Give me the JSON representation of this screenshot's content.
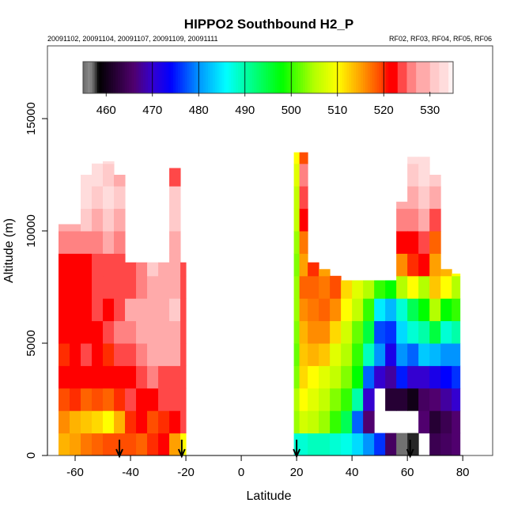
{
  "chart_data": {
    "type": "heatmap",
    "title": "HIPPO2 Southbound H2_P",
    "subtitle_left": "20091102, 20091104, 20091107, 20091109, 20091111",
    "subtitle_right": "RF02, RF03, RF04, RF05, RF06",
    "xlabel": "Latitude",
    "ylabel": "Altitude (m)",
    "xlim": [
      -70,
      90.8
    ],
    "ylim": [
      0,
      18240
    ],
    "x_ticks": [
      -60,
      -40,
      -20,
      0,
      20,
      40,
      60,
      80
    ],
    "x_tick_labels": [
      "-60",
      "-40",
      "-20",
      "0",
      "20",
      "40",
      "60",
      "80"
    ],
    "y_ticks": [
      0,
      5000,
      10000,
      15000
    ],
    "y_tick_labels": [
      "0",
      "5000",
      "10000",
      "15000"
    ],
    "alt_bin_m": 1000,
    "colorbar": {
      "range": [
        455,
        535
      ],
      "ticks": [
        460,
        470,
        480,
        490,
        500,
        510,
        520,
        530
      ],
      "tick_labels": [
        "460",
        "470",
        "480",
        "490",
        "500",
        "510",
        "520",
        "530"
      ],
      "stops": [
        [
          455,
          "#6a6a6a"
        ],
        [
          456.5,
          "#8c8c8c"
        ],
        [
          457.5,
          "#555555"
        ],
        [
          458.4,
          "#000000"
        ],
        [
          466,
          "#50006e"
        ],
        [
          470,
          "#3400d0"
        ],
        [
          474,
          "#0000ff"
        ],
        [
          480,
          "#0094ff"
        ],
        [
          486,
          "#00ffff"
        ],
        [
          490,
          "#00ffa8"
        ],
        [
          498,
          "#00ff00"
        ],
        [
          505,
          "#b4ff00"
        ],
        [
          510,
          "#ffff00"
        ],
        [
          515,
          "#ffa000"
        ],
        [
          519.5,
          "#ff4400"
        ],
        [
          521,
          "#ff0000"
        ],
        [
          523,
          "#ff0000"
        ]
      ],
      "steps": [
        [
          523,
          525,
          "#ff4848"
        ],
        [
          525,
          527,
          "#ff8282"
        ],
        [
          527,
          530,
          "#ffaaaa"
        ],
        [
          530,
          532,
          "#ffcaca"
        ],
        [
          532,
          534,
          "#ffdcdc"
        ],
        [
          534,
          535,
          "#fff2f2"
        ]
      ]
    },
    "flight_markers_lat": [
      -44,
      -21.5,
      20,
      61
    ],
    "columns": [
      {
        "lat": [
          -66,
          -62
        ],
        "top": 10300,
        "values": [
          514,
          516,
          519,
          521,
          520,
          521,
          521,
          522,
          521,
          526,
          529
        ]
      },
      {
        "lat": [
          -62,
          -58
        ],
        "top": 10300,
        "values": [
          515,
          514,
          520,
          521,
          522,
          521,
          521,
          522,
          522,
          527,
          530
        ]
      },
      {
        "lat": [
          -58,
          -54
        ],
        "top": 12500,
        "values": [
          517,
          513,
          518,
          521,
          523,
          522,
          522,
          521,
          522,
          527,
          531,
          533,
          534
        ]
      },
      {
        "lat": [
          -54,
          -50
        ],
        "top": 13000,
        "values": [
          518,
          512,
          519,
          522,
          521,
          522,
          523,
          523,
          524,
          527,
          530,
          532,
          533
        ]
      },
      {
        "lat": [
          -50,
          -46
        ],
        "top": 13100,
        "values": [
          519,
          510,
          518,
          521,
          520,
          524,
          522,
          523,
          525,
          528,
          531,
          533,
          532,
          534
        ]
      },
      {
        "lat": [
          -46,
          -42
        ],
        "top": 12500,
        "values": [
          519,
          514,
          520,
          522,
          524,
          526,
          524,
          523,
          524,
          526,
          529,
          531,
          530
        ]
      },
      {
        "lat": [
          -42,
          -38
        ],
        "top": 8600,
        "values": [
          519,
          520,
          523,
          521,
          525,
          527,
          528,
          525,
          524
        ]
      },
      {
        "lat": [
          -38,
          -34
        ],
        "top": 8600,
        "values": [
          518,
          521,
          522,
          524,
          527,
          528,
          529,
          526,
          527
        ]
      },
      {
        "lat": [
          -34,
          -30
        ],
        "top": 8600,
        "values": [
          520,
          519,
          522,
          526,
          528,
          530,
          529,
          528,
          531
        ]
      },
      {
        "lat": [
          -30,
          -26
        ],
        "top": 8600,
        "values": [
          521,
          520,
          523,
          524,
          528,
          529,
          530,
          530,
          530
        ]
      },
      {
        "lat": [
          -26,
          -22
        ],
        "top": 12800,
        "values": [
          515,
          522,
          523,
          525,
          528,
          530,
          531,
          529,
          529,
          530,
          532,
          531,
          524
        ]
      },
      {
        "lat": [
          -22,
          -20
        ],
        "top": 8600,
        "values": [
          510,
          523,
          524,
          523,
          524,
          524,
          523,
          524,
          525
        ]
      },
      {
        "lat": [
          19,
          21
        ],
        "top": 13500,
        "values": [
          488,
          504,
          505,
          503,
          502,
          503,
          504,
          504,
          503,
          504,
          506,
          506,
          508,
          510
        ]
      },
      {
        "lat": [
          21,
          24
        ],
        "top": 13500,
        "values": [
          488,
          507,
          510,
          512,
          513,
          514,
          516,
          518,
          515,
          517,
          522,
          524,
          526,
          519
        ]
      },
      {
        "lat": [
          24,
          28
        ],
        "top": 8600,
        "values": [
          489,
          506,
          508,
          510,
          514,
          516,
          517,
          518,
          520
        ]
      },
      {
        "lat": [
          28,
          32
        ],
        "top": 8300,
        "values": [
          489,
          504,
          506,
          508,
          513,
          516,
          518,
          517,
          515
        ]
      },
      {
        "lat": [
          32,
          36
        ],
        "top": 8000,
        "values": [
          488,
          500,
          503,
          506,
          508,
          512,
          516,
          519
        ]
      },
      {
        "lat": [
          36,
          40
        ],
        "top": 7800,
        "values": [
          487,
          494,
          500,
          503,
          505,
          507,
          510,
          512
        ]
      },
      {
        "lat": [
          40,
          44
        ],
        "top": 7800,
        "values": [
          484,
          478,
          490,
          498,
          500,
          502,
          506,
          508
        ]
      },
      {
        "lat": [
          44,
          48
        ],
        "top": 7800,
        "values": [
          480,
          466,
          470,
          478,
          489,
          495,
          500,
          505
        ]
      },
      {
        "lat": [
          48,
          52
        ],
        "top": 7800,
        "values": [
          476,
          null,
          null,
          470,
          480,
          477,
          485,
          500
        ]
      },
      {
        "lat": [
          52,
          56
        ],
        "top": 7800,
        "values": [
          465,
          null,
          462,
          468,
          472,
          476,
          482,
          498
        ]
      },
      {
        "lat": [
          56,
          60
        ],
        "top": 11300,
        "values": [
          457,
          null,
          462,
          475,
          480,
          484,
          488,
          505,
          516,
          522,
          527,
          529
        ]
      },
      {
        "lat": [
          60,
          64
        ],
        "top": 13300,
        "values": [
          458,
          null,
          460,
          470,
          478,
          488,
          494,
          510,
          520,
          522,
          527,
          530,
          532,
          533
        ]
      },
      {
        "lat": [
          64,
          68
        ],
        "top": 13300,
        "values": [
          null,
          466,
          465,
          470,
          483,
          490,
          498,
          505,
          522,
          524,
          528,
          532,
          534,
          534
        ]
      },
      {
        "lat": [
          68,
          72
        ],
        "top": 12500,
        "values": [
          464,
          462,
          466,
          472,
          482,
          495,
          505,
          513,
          515,
          518,
          524,
          530,
          531
        ]
      },
      {
        "lat": [
          72,
          76
        ],
        "top": 8300,
        "values": [
          465,
          464,
          468,
          474,
          480,
          488,
          498,
          510,
          514
        ]
      },
      {
        "lat": [
          76,
          79
        ],
        "top": 8100,
        "values": [
          466,
          466,
          470,
          476,
          480,
          490,
          500,
          505,
          510
        ]
      }
    ]
  }
}
